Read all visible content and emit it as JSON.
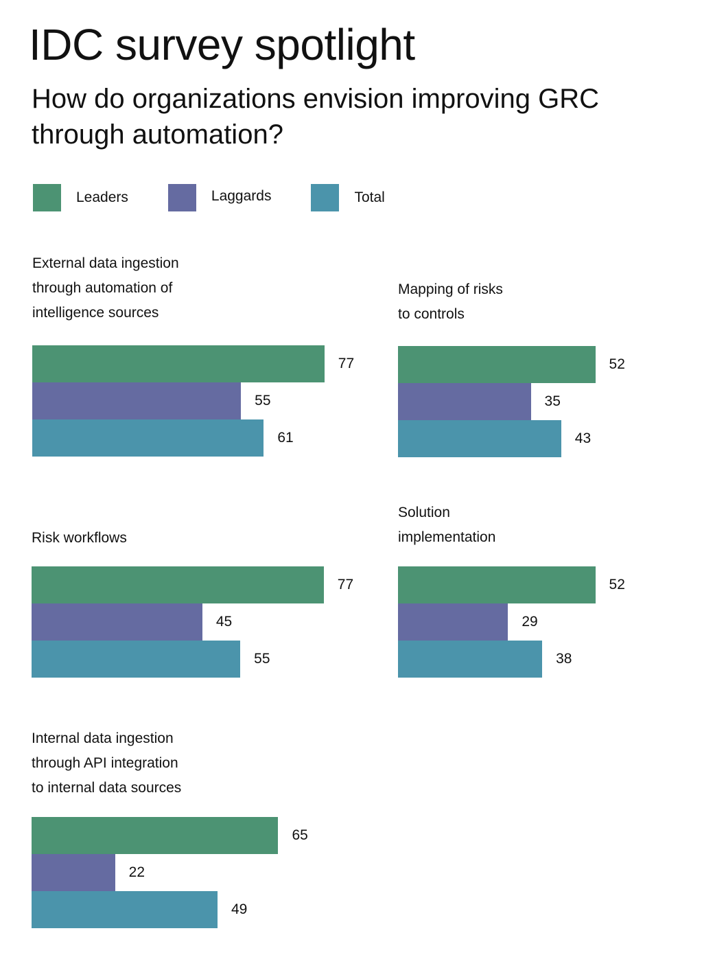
{
  "header": {
    "title": "IDC survey spotlight",
    "subtitle": "How do organizations envision improving GRC through automation?"
  },
  "chart_data": {
    "type": "bar",
    "orientation": "horizontal",
    "legend": {
      "placement": "top-left",
      "entries": [
        "Leaders",
        "Laggards",
        "Total"
      ]
    },
    "colors": {
      "Leaders": "#4c9373",
      "Laggards": "#656ba1",
      "Total": "#4b94ab"
    },
    "panels": [
      {
        "title": "External data ingestion\nthrough automation of\nintelligence sources",
        "values": {
          "Leaders": 77,
          "Laggards": 55,
          "Total": 61
        }
      },
      {
        "title": "Mapping of risks\nto controls",
        "values": {
          "Leaders": 52,
          "Laggards": 35,
          "Total": 43
        }
      },
      {
        "title": "Risk workflows",
        "values": {
          "Leaders": 77,
          "Laggards": 45,
          "Total": 55
        }
      },
      {
        "title": "Solution\nimplementation",
        "values": {
          "Leaders": 52,
          "Laggards": 29,
          "Total": 38
        }
      },
      {
        "title": "Internal data ingestion\nthrough API integration\nto internal data sources",
        "values": {
          "Leaders": 65,
          "Laggards": 22,
          "Total": 49
        }
      }
    ]
  }
}
